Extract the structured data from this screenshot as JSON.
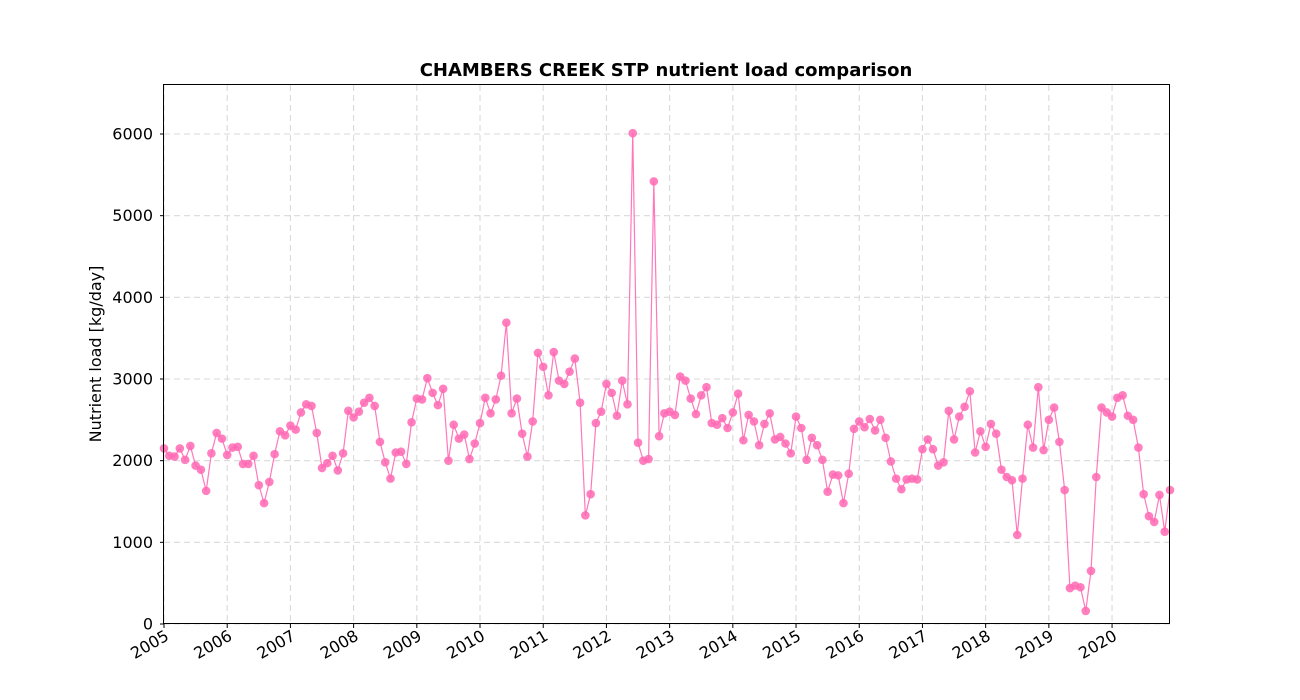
{
  "chart_data": {
    "type": "line",
    "title": "CHAMBERS CREEK STP nutrient load comparison",
    "xlabel": "",
    "ylabel": "Nutrient load [kg/day]",
    "x_ticks": [
      "2005",
      "2006",
      "2007",
      "2008",
      "2009",
      "2010",
      "2011",
      "2012",
      "2013",
      "2014",
      "2015",
      "2016",
      "2017",
      "2018",
      "2019",
      "2020"
    ],
    "y_ticks": [
      0,
      1000,
      2000,
      3000,
      4000,
      5000,
      6000
    ],
    "xlim": [
      "2005-01",
      "2020-12"
    ],
    "ylim": [
      0,
      6600
    ],
    "grid": true,
    "legend": "none",
    "colors": {
      "series": "#ff69b4",
      "grid": "#d9d9d9"
    },
    "series": [
      {
        "x": [
          "2005-01",
          "2005-02",
          "2005-03",
          "2005-04",
          "2005-05",
          "2005-06",
          "2005-07",
          "2005-08",
          "2005-09",
          "2005-10",
          "2005-11",
          "2005-12",
          "2006-01",
          "2006-02",
          "2006-03",
          "2006-04",
          "2006-05",
          "2006-06",
          "2006-07",
          "2006-08",
          "2006-09",
          "2006-10",
          "2006-11",
          "2006-12",
          "2007-01",
          "2007-02",
          "2007-03",
          "2007-04",
          "2007-05",
          "2007-06",
          "2007-07",
          "2007-08",
          "2007-09",
          "2007-10",
          "2007-11",
          "2007-12",
          "2008-01",
          "2008-02",
          "2008-03",
          "2008-04",
          "2008-05",
          "2008-06",
          "2008-07",
          "2008-08",
          "2008-09",
          "2008-10",
          "2008-11",
          "2008-12",
          "2009-01",
          "2009-02",
          "2009-03",
          "2009-04",
          "2009-05",
          "2009-06",
          "2009-07",
          "2009-08",
          "2009-09",
          "2009-10",
          "2009-11",
          "2009-12",
          "2010-01",
          "2010-02",
          "2010-03",
          "2010-04",
          "2010-05",
          "2010-06",
          "2010-07",
          "2010-08",
          "2010-09",
          "2010-10",
          "2010-11",
          "2010-12",
          "2011-01",
          "2011-02",
          "2011-03",
          "2011-04",
          "2011-05",
          "2011-06",
          "2011-07",
          "2011-08",
          "2011-09",
          "2011-10",
          "2011-11",
          "2011-12",
          "2012-01",
          "2012-02",
          "2012-03",
          "2012-04",
          "2012-05",
          "2012-06",
          "2012-07",
          "2012-08",
          "2012-09",
          "2012-10",
          "2012-11",
          "2012-12",
          "2013-01",
          "2013-02",
          "2013-03",
          "2013-04",
          "2013-05",
          "2013-06",
          "2013-07",
          "2013-08",
          "2013-09",
          "2013-10",
          "2013-11",
          "2013-12",
          "2014-01",
          "2014-02",
          "2014-03",
          "2014-04",
          "2014-05",
          "2014-06",
          "2014-07",
          "2014-08",
          "2014-09",
          "2014-10",
          "2014-11",
          "2014-12",
          "2015-01",
          "2015-02",
          "2015-03",
          "2015-04",
          "2015-05",
          "2015-06",
          "2015-07",
          "2015-08",
          "2015-09",
          "2015-10",
          "2015-11",
          "2015-12",
          "2016-01",
          "2016-02",
          "2016-03",
          "2016-04",
          "2016-05",
          "2016-06",
          "2016-07",
          "2016-08",
          "2016-09",
          "2016-10",
          "2016-11",
          "2016-12",
          "2017-01",
          "2017-02",
          "2017-03",
          "2017-04",
          "2017-05",
          "2017-06",
          "2017-07",
          "2017-08",
          "2017-09",
          "2017-10",
          "2017-11",
          "2017-12",
          "2018-01",
          "2018-02",
          "2018-03",
          "2018-04",
          "2018-05",
          "2018-06",
          "2018-07",
          "2018-08",
          "2018-09",
          "2018-10",
          "2018-11",
          "2018-12",
          "2019-01",
          "2019-02",
          "2019-03",
          "2019-04",
          "2019-05",
          "2019-06",
          "2019-07",
          "2019-08",
          "2019-09",
          "2019-10",
          "2019-11",
          "2019-12",
          "2020-01",
          "2020-02",
          "2020-03",
          "2020-04",
          "2020-05",
          "2020-06",
          "2020-07",
          "2020-08",
          "2020-09",
          "2020-10",
          "2020-11",
          "2020-12"
        ],
        "values": [
          2150,
          2060,
          2050,
          2150,
          2010,
          2180,
          1940,
          1890,
          1630,
          2090,
          2340,
          2270,
          2070,
          2160,
          2170,
          1960,
          1960,
          2060,
          1700,
          1480,
          1740,
          2080,
          2360,
          2310,
          2430,
          2380,
          2590,
          2690,
          2670,
          2340,
          1910,
          1970,
          2060,
          1880,
          2090,
          2610,
          2530,
          2600,
          2710,
          2770,
          2670,
          2230,
          1980,
          1780,
          2100,
          2110,
          1960,
          2470,
          2760,
          2750,
          3010,
          2830,
          2680,
          2880,
          2000,
          2440,
          2270,
          2320,
          2020,
          2210,
          2460,
          2770,
          2580,
          2750,
          3040,
          3690,
          2580,
          2760,
          2330,
          2050,
          2480,
          3320,
          3150,
          2800,
          3330,
          2980,
          2940,
          3090,
          3250,
          2710,
          1330,
          1590,
          2460,
          2600,
          2940,
          2830,
          2550,
          2980,
          2690,
          6010,
          2220,
          2000,
          2020,
          5420,
          2300,
          2580,
          2600,
          2560,
          3030,
          2980,
          2760,
          2570,
          2800,
          2900,
          2460,
          2440,
          2520,
          2400,
          2590,
          2820,
          2250,
          2560,
          2480,
          2190,
          2450,
          2580,
          2260,
          2290,
          2210,
          2090,
          2540,
          2400,
          2010,
          2280,
          2190,
          2010,
          1620,
          1830,
          1820,
          1480,
          1840,
          2390,
          2480,
          2410,
          2510,
          2370,
          2500,
          2280,
          1990,
          1780,
          1650,
          1770,
          1780,
          1770,
          2140,
          2260,
          2140,
          1940,
          1980,
          2610,
          2260,
          2540,
          2660,
          2850,
          2100,
          2360,
          2170,
          2450,
          2330,
          1890,
          1800,
          1760,
          1090,
          1780,
          2440,
          2160,
          2900,
          2130,
          2500,
          2650,
          2230,
          1640,
          440,
          470,
          450,
          160,
          650,
          1800,
          2650,
          2590,
          2540,
          2770,
          2800,
          2550,
          2500,
          2160,
          1590,
          1320,
          1250,
          1580,
          1130,
          1640
        ]
      }
    ]
  }
}
